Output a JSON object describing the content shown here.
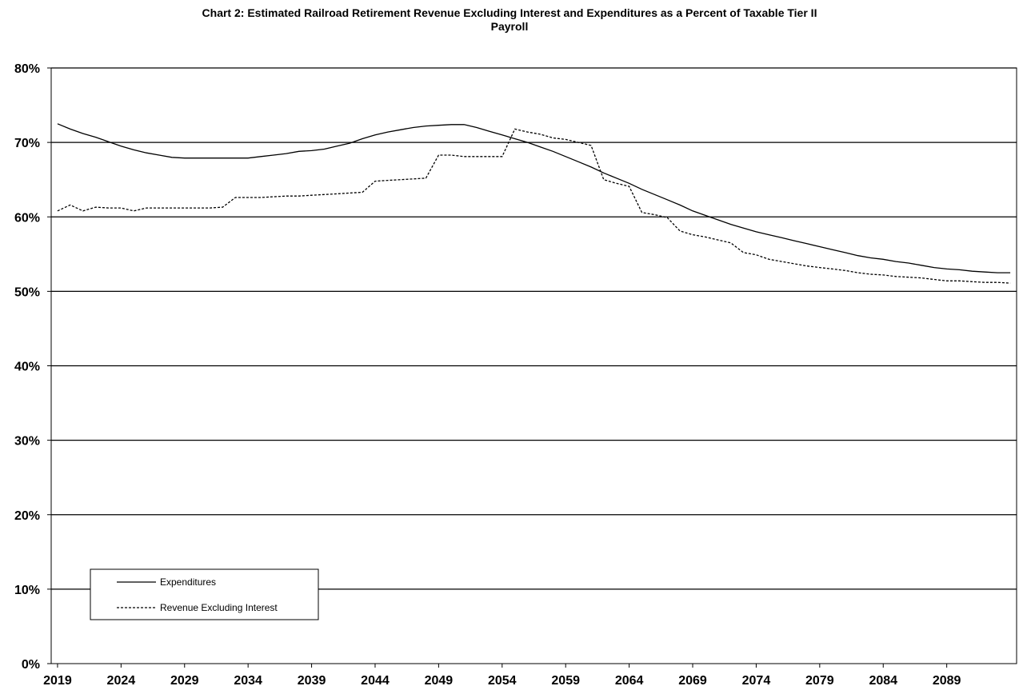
{
  "chart_data": {
    "type": "line",
    "title_line1": "Chart 2: Estimated Railroad Retirement Revenue Excluding Interest and Expenditures as a Percent of Taxable Tier II",
    "title_line2": "Payroll",
    "x_tick_labels": [
      "2019",
      "2024",
      "2029",
      "2034",
      "2039",
      "2044",
      "2049",
      "2054",
      "2059",
      "2064",
      "2069",
      "2074",
      "2079",
      "2084",
      "2089"
    ],
    "y_tick_labels": [
      "0%",
      "10%",
      "20%",
      "30%",
      "40%",
      "50%",
      "60%",
      "70%",
      "80%"
    ],
    "ylim": [
      0,
      80
    ],
    "xlim": [
      2018.5,
      2094.5
    ],
    "grid": "horizontal",
    "legend_position": "bottom-left",
    "x": [
      2019,
      2020,
      2021,
      2022,
      2023,
      2024,
      2025,
      2026,
      2027,
      2028,
      2029,
      2030,
      2031,
      2032,
      2033,
      2034,
      2035,
      2036,
      2037,
      2038,
      2039,
      2040,
      2041,
      2042,
      2043,
      2044,
      2045,
      2046,
      2047,
      2048,
      2049,
      2050,
      2051,
      2052,
      2053,
      2054,
      2055,
      2056,
      2057,
      2058,
      2059,
      2060,
      2061,
      2062,
      2063,
      2064,
      2065,
      2066,
      2067,
      2068,
      2069,
      2070,
      2071,
      2072,
      2073,
      2074,
      2075,
      2076,
      2077,
      2078,
      2079,
      2080,
      2081,
      2082,
      2083,
      2084,
      2085,
      2086,
      2087,
      2088,
      2089,
      2090,
      2091,
      2092,
      2093,
      2094
    ],
    "series": [
      {
        "name": "Expenditures",
        "style": "solid",
        "values": [
          72.5,
          71.8,
          71.2,
          70.7,
          70.1,
          69.5,
          69.0,
          68.6,
          68.3,
          68.0,
          67.9,
          67.9,
          67.9,
          67.9,
          67.9,
          67.9,
          68.1,
          68.3,
          68.5,
          68.8,
          68.9,
          69.1,
          69.5,
          69.9,
          70.5,
          71.0,
          71.4,
          71.7,
          72.0,
          72.2,
          72.3,
          72.4,
          72.4,
          72.0,
          71.5,
          71.0,
          70.5,
          70.0,
          69.4,
          68.8,
          68.1,
          67.4,
          66.7,
          65.9,
          65.2,
          64.5,
          63.7,
          63.0,
          62.3,
          61.6,
          60.8,
          60.2,
          59.6,
          59.0,
          58.5,
          58.0,
          57.6,
          57.2,
          56.8,
          56.4,
          56.0,
          55.6,
          55.2,
          54.8,
          54.5,
          54.3,
          54.0,
          53.8,
          53.5,
          53.2,
          53.0,
          52.9,
          52.7,
          52.6,
          52.5,
          52.5
        ]
      },
      {
        "name": "Revenue Excluding Interest",
        "style": "dashed",
        "values": [
          60.8,
          61.6,
          60.8,
          61.3,
          61.2,
          61.2,
          60.8,
          61.2,
          61.2,
          61.2,
          61.2,
          61.2,
          61.2,
          61.3,
          62.6,
          62.6,
          62.6,
          62.7,
          62.8,
          62.8,
          62.9,
          63.0,
          63.1,
          63.2,
          63.3,
          64.8,
          64.9,
          65.0,
          65.1,
          65.2,
          68.3,
          68.3,
          68.1,
          68.1,
          68.1,
          68.1,
          71.8,
          71.4,
          71.1,
          70.6,
          70.4,
          70.0,
          69.6,
          65.0,
          64.5,
          64.1,
          60.6,
          60.3,
          59.9,
          58.1,
          57.6,
          57.3,
          56.9,
          56.5,
          55.2,
          54.9,
          54.3,
          54.0,
          53.7,
          53.4,
          53.2,
          53.0,
          52.8,
          52.5,
          52.3,
          52.2,
          52.0,
          51.9,
          51.8,
          51.6,
          51.4,
          51.4,
          51.3,
          51.2,
          51.2,
          51.1
        ]
      }
    ]
  }
}
